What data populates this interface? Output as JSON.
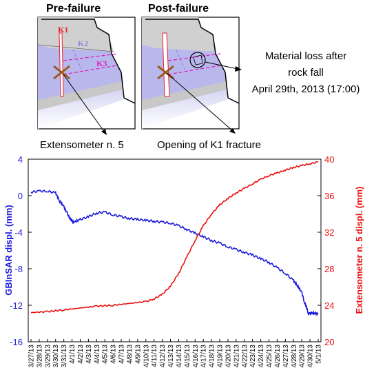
{
  "diagram": {
    "panels": [
      {
        "title": "Pre-failure"
      },
      {
        "title": "Post-failure"
      }
    ],
    "fracture_labels": [
      {
        "text": "K1",
        "color": "#e8202a"
      },
      {
        "text": "K2",
        "color": "#9a7fe0"
      },
      {
        "text": "K3",
        "color": "#e020c0"
      }
    ],
    "annotations": {
      "material_loss": [
        "Material loss after",
        "rock fall",
        "April 29th, 2013 (17:00)"
      ],
      "extensometer": "Extensometer n. 5",
      "opening": "Opening of K1 fracture"
    }
  },
  "chart_data": {
    "type": "line",
    "x_tick_labels": [
      "3/27/13",
      "3/28/13",
      "3/29/13",
      "3/30/13",
      "3/31/13",
      "4/1/13",
      "4/2/13",
      "4/3/13",
      "4/4/13",
      "4/5/13",
      "4/6/13",
      "4/7/13",
      "4/8/13",
      "4/9/13",
      "4/10/13",
      "4/11/13",
      "4/12/13",
      "4/13/13",
      "4/14/13",
      "4/15/13",
      "4/16/13",
      "4/17/13",
      "4/18/13",
      "4/19/13",
      "4/20/13",
      "4/21/13",
      "4/22/13",
      "4/23/13",
      "4/24/13",
      "4/25/13",
      "4/26/13",
      "4/27/13",
      "4/28/13",
      "4/29/13",
      "4/30/13",
      "5/1/13"
    ],
    "y_left": {
      "label": "GBInSAR displ. (mm)",
      "range": [
        -16,
        4
      ],
      "ticks": [
        "4",
        "0",
        "-4",
        "-8",
        "-12",
        "-16"
      ],
      "color": "#1a1adc"
    },
    "y_right": {
      "label": "Extensometer n. 5 displ. (mm)",
      "range": [
        20,
        40
      ],
      "ticks": [
        "40",
        "36",
        "32",
        "28",
        "24",
        "20"
      ],
      "color": "#e81010"
    },
    "series": [
      {
        "axis": "left",
        "color": "#1a1adc",
        "x": [
          0,
          1,
          2,
          3,
          3.5,
          4,
          4.4,
          4.8,
          5.2,
          6,
          7,
          8,
          9,
          10,
          11,
          12,
          13,
          14,
          15,
          16,
          17,
          18,
          19,
          20,
          21,
          22,
          23,
          24,
          25,
          26,
          27,
          28,
          29,
          30,
          31,
          32,
          32.5,
          33,
          33.3,
          33.6,
          33.8,
          34,
          34.3,
          34.6,
          35
        ],
        "y": [
          0.4,
          0.5,
          0.5,
          0.3,
          -0.6,
          -1.2,
          -1.9,
          -2.6,
          -2.9,
          -2.6,
          -2.3,
          -1.9,
          -1.8,
          -2.1,
          -2.3,
          -2.5,
          -2.6,
          -2.7,
          -2.8,
          -2.9,
          -3.0,
          -3.3,
          -3.7,
          -4.1,
          -4.5,
          -4.9,
          -5.2,
          -5.6,
          -5.9,
          -6.2,
          -6.5,
          -6.9,
          -7.3,
          -7.9,
          -8.5,
          -9.3,
          -9.9,
          -10.6,
          -11.6,
          -12.3,
          -12.9,
          -12.9,
          -12.8,
          -12.9,
          -12.9
        ]
      },
      {
        "axis": "right",
        "color": "#e81010",
        "x": [
          0,
          2,
          4,
          6,
          8,
          10,
          12,
          14,
          15,
          16,
          17,
          18,
          19,
          20,
          21,
          22,
          23,
          24,
          25,
          26,
          27,
          28,
          29,
          30,
          31,
          32,
          33,
          34,
          35
        ],
        "y": [
          23.2,
          23.3,
          23.5,
          23.7,
          23.9,
          24.0,
          24.2,
          24.4,
          24.7,
          25.2,
          26.1,
          27.5,
          29.3,
          31.1,
          32.7,
          34.0,
          35.0,
          35.7,
          36.3,
          36.8,
          37.3,
          37.8,
          38.2,
          38.5,
          38.8,
          39.1,
          39.3,
          39.5,
          39.7
        ]
      }
    ]
  }
}
